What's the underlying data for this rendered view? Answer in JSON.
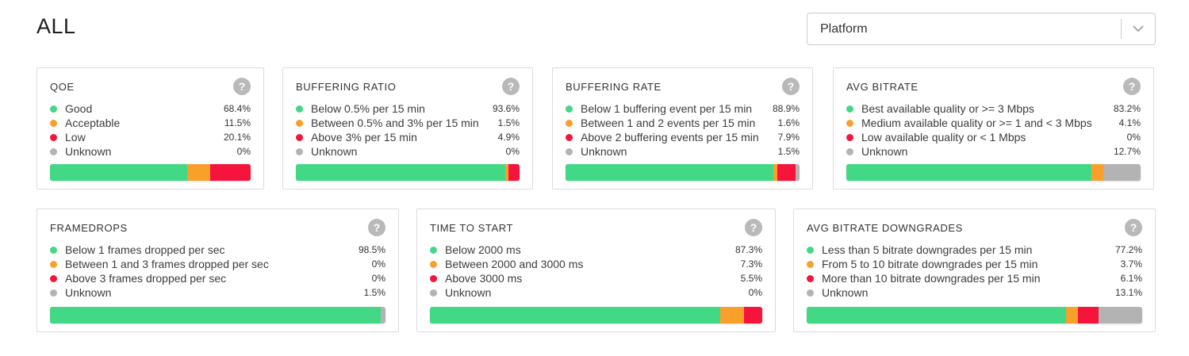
{
  "header": {
    "title": "ALL",
    "platform_filter": {
      "label": "Platform"
    }
  },
  "help_icon": "?",
  "colors": {
    "good": "#42d885",
    "warning": "#f9a02c",
    "critical": "#f5143c",
    "unknown": "#b3b3b3"
  },
  "cards": [
    {
      "title": "QOE",
      "items": [
        {
          "label": "Good",
          "value": "68.4%",
          "pct": 68.4,
          "color_key": "good"
        },
        {
          "label": "Acceptable",
          "value": "11.5%",
          "pct": 11.5,
          "color_key": "warning"
        },
        {
          "label": "Low",
          "value": "20.1%",
          "pct": 20.1,
          "color_key": "critical"
        },
        {
          "label": "Unknown",
          "value": "0%",
          "pct": 0,
          "color_key": "unknown"
        }
      ]
    },
    {
      "title": "BUFFERING RATIO",
      "items": [
        {
          "label": "Below 0.5% per 15 min",
          "value": "93.6%",
          "pct": 93.6,
          "color_key": "good"
        },
        {
          "label": "Between 0.5% and 3% per 15 min",
          "value": "1.5%",
          "pct": 1.5,
          "color_key": "warning"
        },
        {
          "label": "Above 3% per 15 min",
          "value": "4.9%",
          "pct": 4.9,
          "color_key": "critical"
        },
        {
          "label": "Unknown",
          "value": "0%",
          "pct": 0,
          "color_key": "unknown"
        }
      ]
    },
    {
      "title": "BUFFERING RATE",
      "items": [
        {
          "label": "Below 1 buffering event per 15 min",
          "value": "88.9%",
          "pct": 88.9,
          "color_key": "good"
        },
        {
          "label": "Between 1 and 2 events per 15 min",
          "value": "1.6%",
          "pct": 1.6,
          "color_key": "warning"
        },
        {
          "label": "Above 2 buffering events per 15 min",
          "value": "7.9%",
          "pct": 7.9,
          "color_key": "critical"
        },
        {
          "label": "Unknown",
          "value": "1.5%",
          "pct": 1.5,
          "color_key": "unknown"
        }
      ]
    },
    {
      "title": "AVG BITRATE",
      "items": [
        {
          "label": "Best available quality or >= 3 Mbps",
          "value": "83.2%",
          "pct": 83.2,
          "color_key": "good"
        },
        {
          "label": "Medium available quality or >= 1 and < 3 Mbps",
          "value": "4.1%",
          "pct": 4.1,
          "color_key": "warning"
        },
        {
          "label": "Low available quality or < 1 Mbps",
          "value": "0%",
          "pct": 0,
          "color_key": "critical"
        },
        {
          "label": "Unknown",
          "value": "12.7%",
          "pct": 12.7,
          "color_key": "unknown"
        }
      ]
    },
    {
      "title": "FRAMEDROPS",
      "items": [
        {
          "label": "Below 1 frames dropped per sec",
          "value": "98.5%",
          "pct": 98.5,
          "color_key": "good"
        },
        {
          "label": "Between 1 and 3 frames dropped per sec",
          "value": "0%",
          "pct": 0,
          "color_key": "warning"
        },
        {
          "label": "Above 3 frames dropped per sec",
          "value": "0%",
          "pct": 0,
          "color_key": "critical"
        },
        {
          "label": "Unknown",
          "value": "1.5%",
          "pct": 1.5,
          "color_key": "unknown"
        }
      ]
    },
    {
      "title": "TIME TO START",
      "items": [
        {
          "label": "Below 2000 ms",
          "value": "87.3%",
          "pct": 87.3,
          "color_key": "good"
        },
        {
          "label": "Between 2000 and 3000 ms",
          "value": "7.3%",
          "pct": 7.3,
          "color_key": "warning"
        },
        {
          "label": "Above 3000 ms",
          "value": "5.5%",
          "pct": 5.5,
          "color_key": "critical"
        },
        {
          "label": "Unknown",
          "value": "0%",
          "pct": 0,
          "color_key": "unknown"
        }
      ]
    },
    {
      "title": "AVG BITRATE DOWNGRADES",
      "items": [
        {
          "label": "Less than 5 bitrate downgrades per 15 min",
          "value": "77.2%",
          "pct": 77.2,
          "color_key": "good"
        },
        {
          "label": "From 5 to 10 bitrate downgrades per 15 min",
          "value": "3.7%",
          "pct": 3.7,
          "color_key": "warning"
        },
        {
          "label": "More than 10 bitrate downgrades per 15 min",
          "value": "6.1%",
          "pct": 6.1,
          "color_key": "critical"
        },
        {
          "label": "Unknown",
          "value": "13.1%",
          "pct": 13.1,
          "color_key": "unknown"
        }
      ]
    }
  ]
}
